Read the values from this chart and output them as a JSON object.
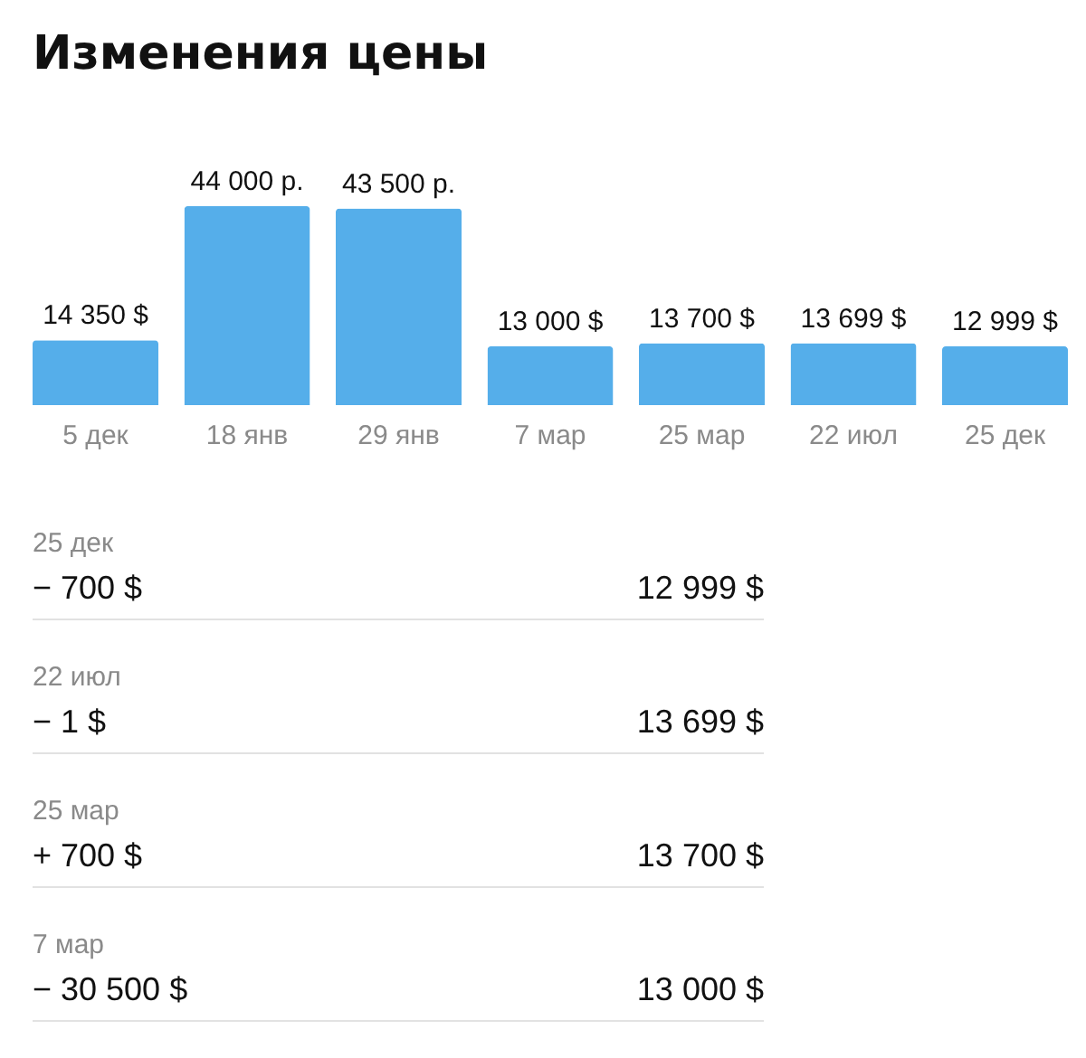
{
  "chart_data": [
    {
      "type": "bar",
      "title": "Изменения цены",
      "categories": [
        "5 дек",
        "18 янв",
        "29 янв",
        "7 мар",
        "25 мар",
        "22 июл",
        "25 дек"
      ],
      "values": [
        14350,
        44000,
        43500,
        13000,
        13700,
        13699,
        12999
      ],
      "color": "#55aeea",
      "value_labels": [
        "14 350 $",
        "44 000 р.",
        "43 500 р.",
        "13 000 $",
        "13 700 $",
        "13 699 $",
        "12 999 $"
      ]
    },
    {
      "type": "other",
      "annotations": [
        "25 дек",
        "− 700 $",
        "12 999 $",
        "22 июл",
        "− 1 $",
        "13 699 $",
        "25 мар",
        "+ 700 $",
        "13 700 $",
        "7 мар",
        "− 30 500 $",
        "13 000 $"
      ]
    }
  ]
}
